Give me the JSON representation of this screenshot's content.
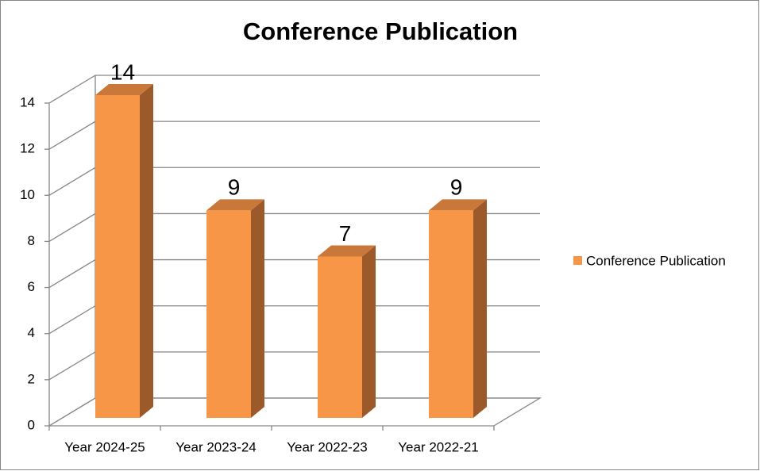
{
  "chart_data": {
    "type": "bar3d",
    "title": "Conference Publication",
    "categories": [
      "Year 2024-25",
      "Year 2023-24",
      "Year 2022-23",
      "Year 2022-21"
    ],
    "series": [
      {
        "name": "Conference Publication",
        "color": "#f79646",
        "values": [
          14,
          9,
          7,
          9
        ]
      }
    ],
    "ylim": [
      0,
      14
    ],
    "yticks": [
      0,
      2,
      4,
      6,
      8,
      10,
      12,
      14
    ],
    "grid": true,
    "legend": "right"
  }
}
